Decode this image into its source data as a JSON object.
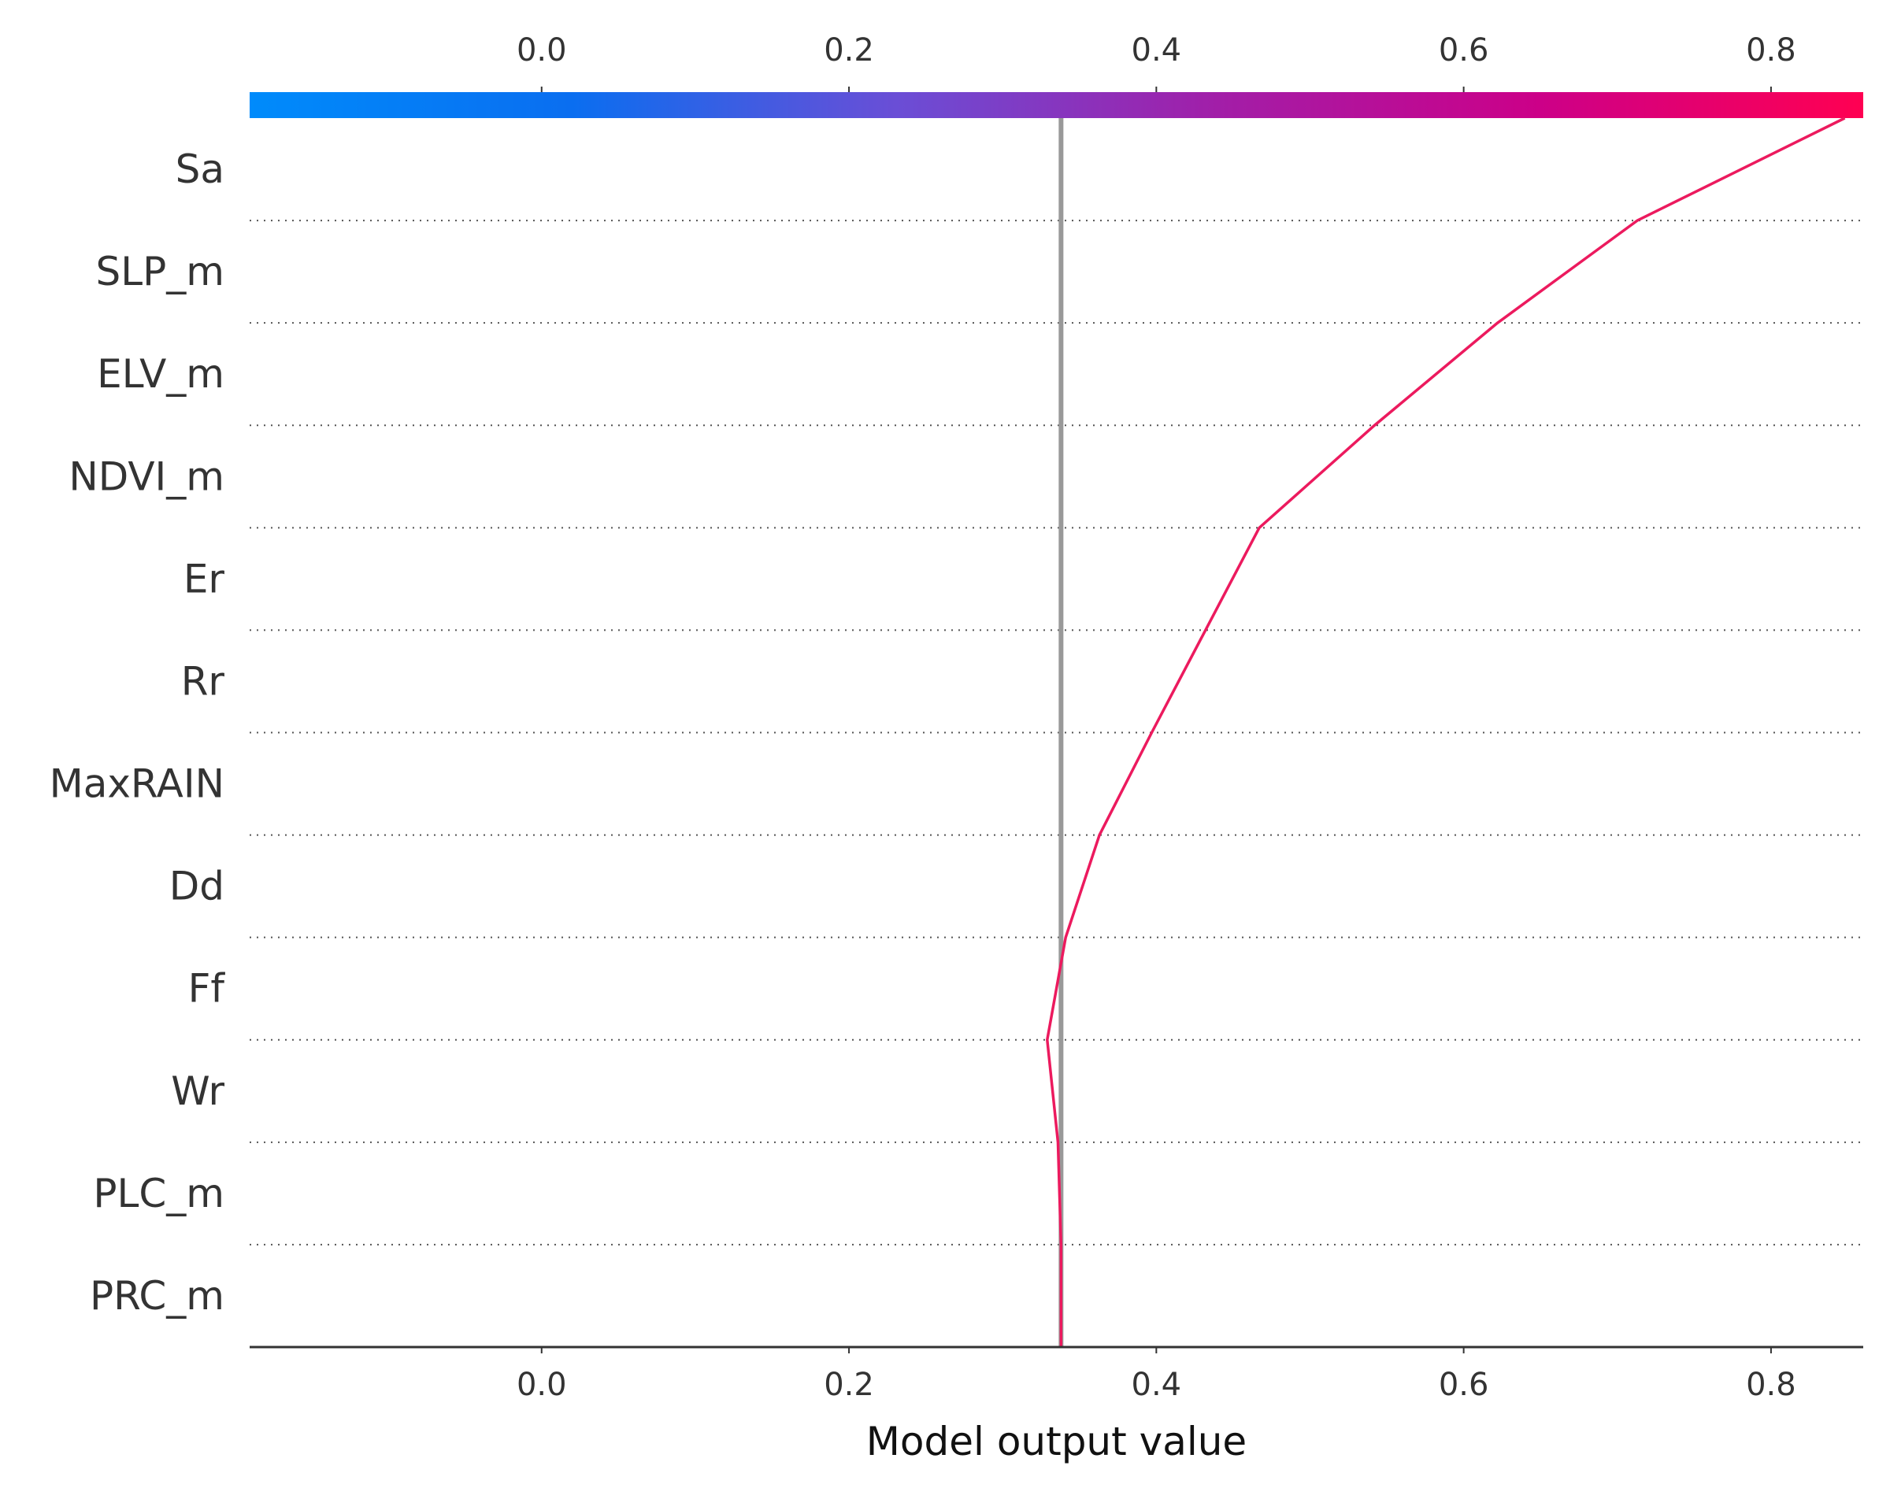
{
  "chart_data": {
    "type": "line",
    "chart_kind": "shap-decision-plot",
    "title": "",
    "xlabel": "Model output value",
    "ylabel": "",
    "xlim": [
      -0.19,
      0.86
    ],
    "x_ticks": [
      "0.0",
      "0.2",
      "0.4",
      "0.6",
      "0.8"
    ],
    "x_tick_values": [
      0.0,
      0.2,
      0.4,
      0.6,
      0.8
    ],
    "base_value": 0.338,
    "colorbar": {
      "position": "top",
      "colors": [
        "#008bfb",
        "#0a6ef0",
        "#6a4ed6",
        "#a21ea8",
        "#cc0088",
        "#ff0052"
      ]
    },
    "features": [
      "Sa",
      "SLP_m",
      "ELV_m",
      "NDVI_m",
      "Er",
      "Rr",
      "MaxRAIN",
      "Dd",
      "Ff",
      "Wr",
      "PLC_m",
      "PRC_m"
    ],
    "series": [
      {
        "color": "#ec1a5e",
        "values_bottom_to_top": [
          0.338,
          0.338,
          0.336,
          0.329,
          0.341,
          0.363,
          0.397,
          0.432,
          0.467,
          0.542,
          0.622,
          0.713,
          0.848
        ]
      }
    ],
    "grid": "dotted horizontal separators",
    "legend": "none"
  }
}
